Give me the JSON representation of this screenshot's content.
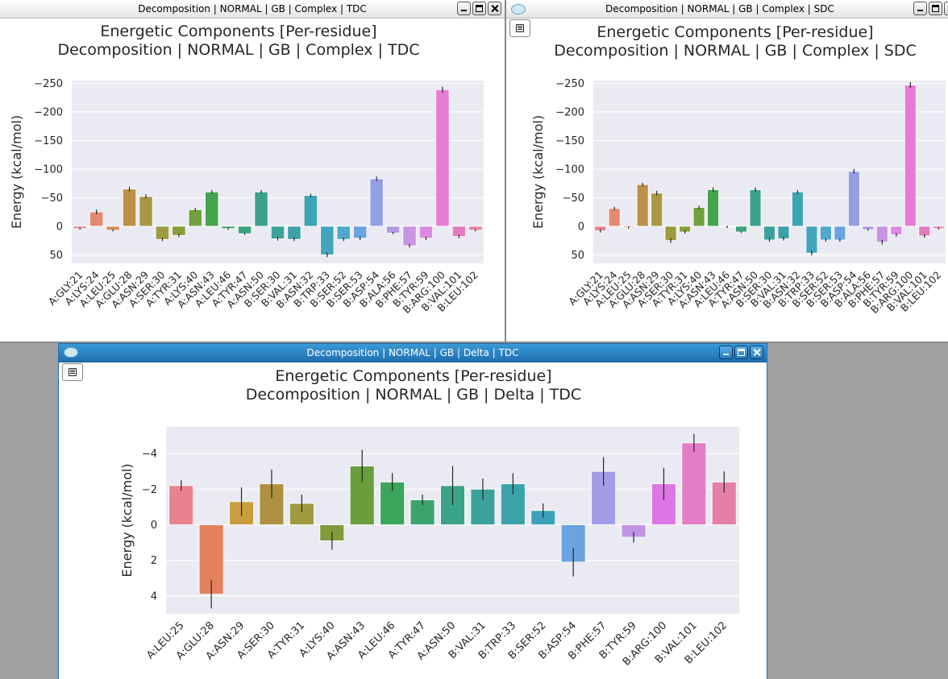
{
  "windows": [
    {
      "id": "w1",
      "window_title": "Decomposition | NORMAL | GB | Complex | TDC",
      "chart_title": [
        "Energetic Components [Per-residue]",
        "Decomposition | NORMAL | GB | Complex | TDC"
      ],
      "ylabel": "Energy (kcal/mol)"
    },
    {
      "id": "w2",
      "window_title": "Decomposition | NORMAL | GB | Complex | SDC",
      "chart_title": [
        "Energetic Components [Per-residue]",
        "Decomposition | NORMAL | GB | Complex | SDC"
      ],
      "ylabel": "Energy (kcal/mol)"
    },
    {
      "id": "w3",
      "window_title": "Decomposition | NORMAL | GB | Delta | TDC",
      "chart_title": [
        "Energetic Components [Per-residue]",
        "Decomposition | NORMAL | GB | Delta | TDC"
      ],
      "ylabel": "Energy (kcal/mol)"
    }
  ],
  "chart_data": [
    {
      "type": "bar",
      "title": "Energetic Components [Per-residue] Decomposition | NORMAL | GB | Complex | TDC",
      "ylabel": "Energy (kcal/mol)",
      "y_inverted": true,
      "ylim": [
        -255,
        65
      ],
      "yticks": [
        -250,
        -200,
        -150,
        -100,
        -50,
        0,
        50
      ],
      "ytick_labels": [
        "−250",
        "−200",
        "−150",
        "−100",
        "−50",
        "0",
        "50"
      ],
      "grid": true,
      "categories": [
        "A:GLY:21",
        "A:LYS:24",
        "A:LEU:25",
        "A:GLU:28",
        "A:ASN:29",
        "A:SER:30",
        "A:TYR:31",
        "A:LYS:40",
        "A:ASN:43",
        "A:LEU:46",
        "A:TYR:47",
        "A:ASN:50",
        "B:SER:30",
        "B:VAL:31",
        "B:ASN:32",
        "B:TRP:33",
        "B:SER:52",
        "B:SER:53",
        "B:ASP:54",
        "B:ALA:56",
        "B:PHE:57",
        "B:TYR:59",
        "B:ARG:100",
        "B:VAL:101",
        "B:LEU:102"
      ],
      "values": [
        4,
        -25,
        7,
        -65,
        -52,
        23,
        16,
        -29,
        -60,
        4,
        13,
        -60,
        22,
        23,
        -54,
        50,
        23,
        21,
        -83,
        12,
        34,
        21,
        -239,
        18,
        7
      ],
      "errors": [
        2,
        4,
        2,
        4,
        4,
        3,
        3,
        3,
        3,
        2,
        2,
        3,
        3,
        3,
        3,
        4,
        3,
        3,
        4,
        2,
        3,
        3,
        5,
        3,
        2
      ],
      "colors": [
        "#e8828e",
        "#e58872",
        "#d3905b",
        "#bb9245",
        "#aa9645",
        "#9d9a3f",
        "#8a9d3a",
        "#6fa23e",
        "#43a44d",
        "#3ba36b",
        "#3ca27e",
        "#3ca28e",
        "#3da19b",
        "#3ea0a8",
        "#3ea3b2",
        "#42a4bd",
        "#52a7ce",
        "#6aa4e0",
        "#949fe6",
        "#b398e3",
        "#c994e1",
        "#dc8ae4",
        "#e67bd5",
        "#e57cbf",
        "#e980a8"
      ]
    },
    {
      "type": "bar",
      "title": "Energetic Components [Per-residue] Decomposition | NORMAL | GB | Complex | SDC",
      "ylabel": "Energy (kcal/mol)",
      "y_inverted": true,
      "ylim": [
        -255,
        65
      ],
      "yticks": [
        -250,
        -200,
        -150,
        -100,
        -50,
        0,
        50
      ],
      "ytick_labels": [
        "−250",
        "−200",
        "−150",
        "−100",
        "−50",
        "0",
        "50"
      ],
      "grid": true,
      "categories": [
        "A:GLY:21",
        "A:LYS:24",
        "A:LEU:25",
        "A:GLU:28",
        "A:ASN:29",
        "A:SER:30",
        "A:TYR:31",
        "A:LYS:40",
        "A:ASN:43",
        "A:LEU:46",
        "A:TYR:47",
        "A:ASN:50",
        "B:SER:30",
        "B:VAL:31",
        "B:ASN:32",
        "B:TRP:33",
        "B:SER:52",
        "B:SER:53",
        "B:ASP:54",
        "B:ALA:56",
        "B:PHE:57",
        "B:TYR:59",
        "B:ARG:100",
        "B:VAL:101",
        "B:LEU:102"
      ],
      "values": [
        8,
        -31,
        2,
        -73,
        -58,
        25,
        10,
        -33,
        -64,
        1,
        10,
        -64,
        24,
        22,
        -60,
        47,
        24,
        24,
        -96,
        6,
        28,
        15,
        -247,
        17,
        4
      ],
      "errors": [
        3,
        3,
        2,
        3,
        4,
        4,
        3,
        3,
        4,
        2,
        2,
        4,
        3,
        3,
        3,
        4,
        3,
        3,
        4,
        2,
        4,
        3,
        5,
        3,
        2
      ],
      "colors": [
        "#e8828e",
        "#e58872",
        "#d3905b",
        "#bb9245",
        "#aa9645",
        "#9d9a3f",
        "#8a9d3a",
        "#6fa23e",
        "#43a44d",
        "#3ba36b",
        "#3ca27e",
        "#3ca28e",
        "#3da19b",
        "#3ea0a8",
        "#3ea3b2",
        "#42a4bd",
        "#52a7ce",
        "#6aa4e0",
        "#949fe6",
        "#b398e3",
        "#c994e1",
        "#dc8ae4",
        "#e67bd5",
        "#e57cbf",
        "#e980a8"
      ]
    },
    {
      "type": "bar",
      "title": "Energetic Components [Per-residue] Decomposition | NORMAL | GB | Delta | TDC",
      "ylabel": "Energy (kcal/mol)",
      "y_inverted": true,
      "ylim": [
        -5.5,
        5.0
      ],
      "yticks": [
        -4,
        -2,
        0,
        2,
        4
      ],
      "ytick_labels": [
        "−4",
        "−2",
        "0",
        "2",
        "4"
      ],
      "grid": true,
      "categories": [
        "A:LEU:25",
        "A:GLU:28",
        "A:ASN:29",
        "A:SER:30",
        "A:TYR:31",
        "A:LYS:40",
        "A:ASN:43",
        "A:LEU:46",
        "A:TYR:47",
        "A:ASN:50",
        "B:VAL:31",
        "B:TRP:33",
        "B:SER:52",
        "B:ASP:54",
        "B:PHE:57",
        "B:TYR:59",
        "B:ARG:100",
        "B:VAL:101",
        "B:LEU:102"
      ],
      "values": [
        -2.2,
        3.9,
        -1.3,
        -2.3,
        -1.2,
        0.9,
        -3.3,
        -2.4,
        -1.4,
        -2.2,
        -2.0,
        -2.3,
        -0.8,
        2.1,
        -3.0,
        0.7,
        -2.3,
        -4.6,
        -2.4
      ],
      "errors": [
        0.3,
        0.8,
        0.8,
        0.8,
        0.5,
        0.5,
        0.9,
        0.5,
        0.3,
        1.1,
        0.6,
        0.6,
        0.4,
        0.8,
        0.8,
        0.3,
        0.9,
        0.5,
        0.6
      ],
      "colors": [
        "#e8828e",
        "#e2815c",
        "#c99e3f",
        "#ae9040",
        "#9f9a3b",
        "#7f9b3a",
        "#6a9e3d",
        "#3ba55b",
        "#3ba46e",
        "#3ba388",
        "#3ba29b",
        "#3ca2a9",
        "#3da2b9",
        "#6aa4e0",
        "#a39ce6",
        "#c193e3",
        "#dc76e2",
        "#e57cc8",
        "#e480a8"
      ]
    }
  ]
}
